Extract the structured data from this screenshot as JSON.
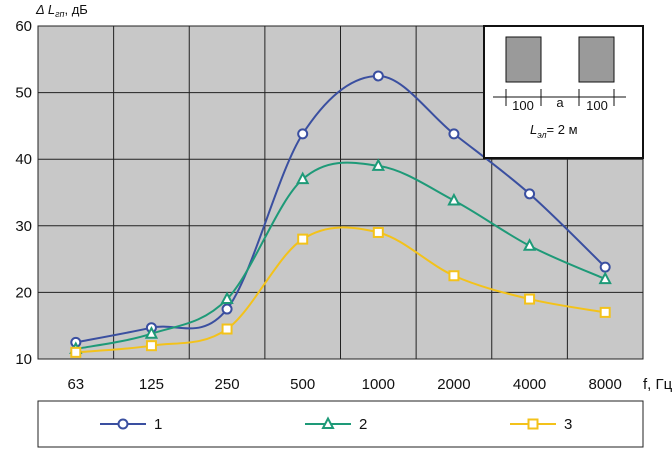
{
  "chart_data": {
    "type": "line",
    "ylabel": "Δ L",
    "ylabel_sub": "гп",
    "ylabel_unit": ", дБ",
    "xlabel": "f, Гц",
    "categories": [
      "63",
      "125",
      "250",
      "500",
      "1000",
      "2000",
      "4000",
      "8000"
    ],
    "y_ticks": [
      "10",
      "20",
      "30",
      "40",
      "50",
      "60"
    ],
    "ylim": [
      10,
      60
    ],
    "grid": true,
    "legend_position": "bottom",
    "series": [
      {
        "name": "1",
        "color": "#3a4fa0",
        "marker": "circle",
        "values": [
          12.5,
          14.7,
          17.5,
          43.8,
          52.5,
          43.8,
          34.8,
          23.8
        ]
      },
      {
        "name": "2",
        "color": "#1e9a78",
        "marker": "triangle",
        "values": [
          11.5,
          13.8,
          19.0,
          37.0,
          39.0,
          33.8,
          27.0,
          22.0
        ]
      },
      {
        "name": "3",
        "color": "#f3c21a",
        "marker": "square",
        "values": [
          11.0,
          12.0,
          14.5,
          28.0,
          29.0,
          22.5,
          19.0,
          17.0
        ]
      }
    ],
    "inset": {
      "left_width": "100",
      "gap": "a",
      "right_width": "100",
      "length_label": "L",
      "length_sub": "эл",
      "length_value": "= 2 м"
    }
  }
}
